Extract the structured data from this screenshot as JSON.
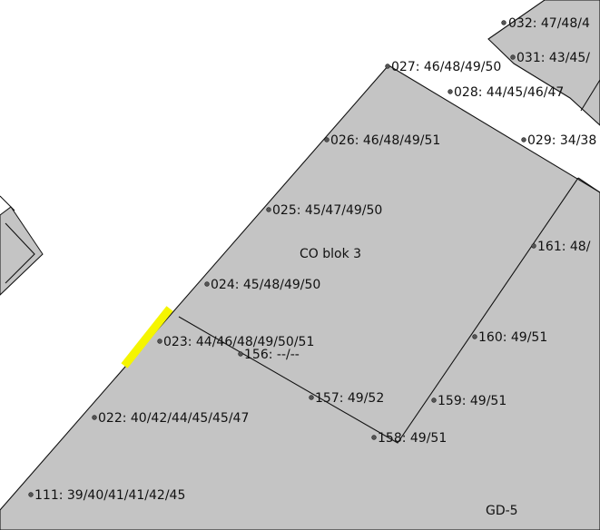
{
  "map": {
    "colors": {
      "parcel_fill": "#c4c4c4",
      "background": "#ffffff",
      "boundary": "#111111",
      "highlight": "#f5f500"
    },
    "areas": [
      {
        "id": "co-blok-3",
        "label": "CO blok 3"
      },
      {
        "id": "gd-5",
        "label": "GD-5"
      }
    ],
    "points": [
      {
        "id": "pt-032",
        "label": "032: 47/48/4"
      },
      {
        "id": "pt-031",
        "label": "031: 43/45/"
      },
      {
        "id": "pt-027",
        "label": "027: 46/48/49/50"
      },
      {
        "id": "pt-028",
        "label": "028: 44/45/46/47"
      },
      {
        "id": "pt-026",
        "label": "026: 46/48/49/51"
      },
      {
        "id": "pt-029",
        "label": "029: 34/38"
      },
      {
        "id": "pt-025",
        "label": "025: 45/47/49/50"
      },
      {
        "id": "pt-161",
        "label": "161: 48/"
      },
      {
        "id": "pt-024",
        "label": "024: 45/48/49/50"
      },
      {
        "id": "pt-023",
        "label": "023: 44/46/48/49/50/51"
      },
      {
        "id": "pt-156",
        "label": "156: --/--"
      },
      {
        "id": "pt-160",
        "label": "160: 49/51"
      },
      {
        "id": "pt-157",
        "label": "157: 49/52"
      },
      {
        "id": "pt-159",
        "label": "159: 49/51"
      },
      {
        "id": "pt-022",
        "label": "022: 40/42/44/45/45/47"
      },
      {
        "id": "pt-158",
        "label": "158: 49/51"
      },
      {
        "id": "pt-111",
        "label": "111: 39/40/41/41/42/45"
      }
    ]
  }
}
